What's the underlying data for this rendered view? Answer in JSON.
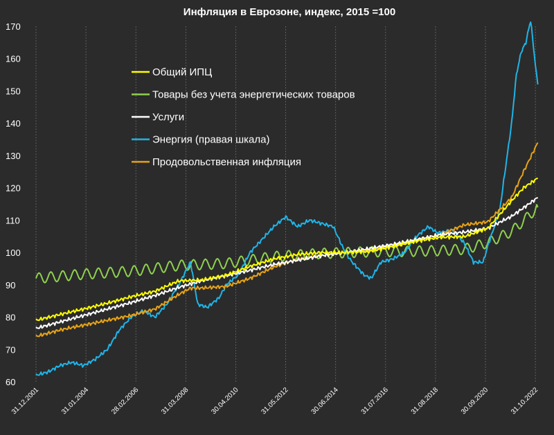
{
  "chart_data": {
    "type": "line",
    "title": "Инфляция в Еврозоне, индекс, 2015 =100",
    "xlabel": "",
    "ylabel": "",
    "ylim": [
      60,
      170
    ],
    "y_ticks": [
      "60",
      "70",
      "80",
      "90",
      "100",
      "110",
      "120",
      "130",
      "140",
      "150",
      "160",
      "170"
    ],
    "x_ticks": [
      "31.12.2001",
      "31.01.2004",
      "28.02.2006",
      "31.03.2008",
      "30.04.2010",
      "31.05.2012",
      "30.06.2014",
      "31.07.2016",
      "31.08.2018",
      "30.09.2020",
      "31.10.2022"
    ],
    "xlim": [
      2002.0,
      2023.2
    ],
    "grid": "vertical",
    "legend_position": "center-left",
    "background": "#2b2b2b",
    "series": [
      {
        "name": "Общий ИПЦ",
        "color": "#ffff00",
        "x": [
          2002,
          2003,
          2004,
          2005,
          2006,
          2007,
          2008,
          2009,
          2010,
          2011,
          2012,
          2013,
          2014,
          2015,
          2016,
          2017,
          2018,
          2019,
          2020,
          2021,
          2022,
          2022.5,
          2023.1
        ],
        "y": [
          79,
          80.8,
          82.5,
          84.3,
          86.3,
          88,
          91.2,
          91.5,
          93,
          95.7,
          98,
          99.4,
          100,
          100,
          100.3,
          101.8,
          103.5,
          104.7,
          104.9,
          107.5,
          116,
          120,
          123
        ]
      },
      {
        "name": "Товары без учета энергетических товаров",
        "color": "#8fd14f",
        "seasonal": 1.6,
        "x": [
          2002,
          2004,
          2006,
          2008,
          2010,
          2012,
          2014,
          2016,
          2018,
          2019,
          2020,
          2021,
          2022,
          2022.6,
          2023.1
        ],
        "y": [
          92,
          93.3,
          94.2,
          96,
          96.6,
          98.7,
          99.7,
          100.2,
          100.4,
          100.6,
          101,
          103,
          106.5,
          110.5,
          114
        ]
      },
      {
        "name": "Услуги",
        "color": "#ffffff",
        "x": [
          2002,
          2003,
          2004,
          2005,
          2006,
          2007,
          2008,
          2009,
          2010,
          2011,
          2012,
          2013,
          2014,
          2015,
          2016,
          2017,
          2018,
          2019,
          2020,
          2021,
          2022,
          2023.1
        ],
        "y": [
          76.5,
          78.5,
          80.5,
          82.5,
          84.5,
          86.7,
          89.2,
          91.3,
          92.8,
          94.5,
          96.3,
          97.6,
          99,
          100,
          101.2,
          102.5,
          104,
          105.5,
          106.3,
          107.5,
          111.2,
          117
        ]
      },
      {
        "name": "Энергия (правая шкала)",
        "color": "#1fb5e8",
        "x": [
          2002,
          2002.5,
          2003,
          2003.5,
          2004,
          2004.5,
          2005,
          2005.5,
          2006,
          2006.5,
          2007,
          2007.5,
          2008,
          2008.5,
          2008.8,
          2009.2,
          2009.7,
          2010,
          2010.5,
          2011,
          2011.5,
          2012,
          2012.5,
          2013,
          2013.5,
          2014,
          2014.5,
          2015,
          2015.3,
          2015.8,
          2016.1,
          2016.5,
          2017,
          2017.5,
          2018,
          2018.5,
          2018.9,
          2019.5,
          2020,
          2020.4,
          2020.8,
          2021,
          2021.5,
          2022,
          2022.2,
          2022.4,
          2022.6,
          2022.8,
          2023,
          2023.1
        ],
        "y": [
          62,
          63,
          65,
          66,
          65,
          67,
          70,
          76,
          80,
          82,
          80,
          84,
          90,
          97,
          84,
          83,
          86,
          90,
          93,
          100,
          104,
          108,
          111,
          108,
          110,
          109,
          108,
          100,
          97,
          93,
          92,
          97,
          98,
          100,
          105,
          108,
          106,
          107,
          103,
          97,
          97,
          102,
          113,
          140,
          155,
          162,
          165,
          172,
          158,
          152
        ]
      },
      {
        "name": "Продовольственная инфляция",
        "color": "#e8a317",
        "x": [
          2002,
          2003,
          2004,
          2005,
          2006,
          2007,
          2008,
          2008.5,
          2009,
          2010,
          2011,
          2012,
          2013,
          2014,
          2015,
          2016,
          2017,
          2018,
          2019,
          2020,
          2021,
          2022,
          2022.5,
          2023.1
        ],
        "y": [
          74,
          76,
          77.5,
          79,
          80.5,
          82.5,
          87,
          89,
          89,
          89.5,
          92,
          95.5,
          98,
          99,
          100,
          100.6,
          102,
          104,
          105.5,
          108.5,
          109.5,
          117,
          125,
          134
        ]
      }
    ]
  }
}
